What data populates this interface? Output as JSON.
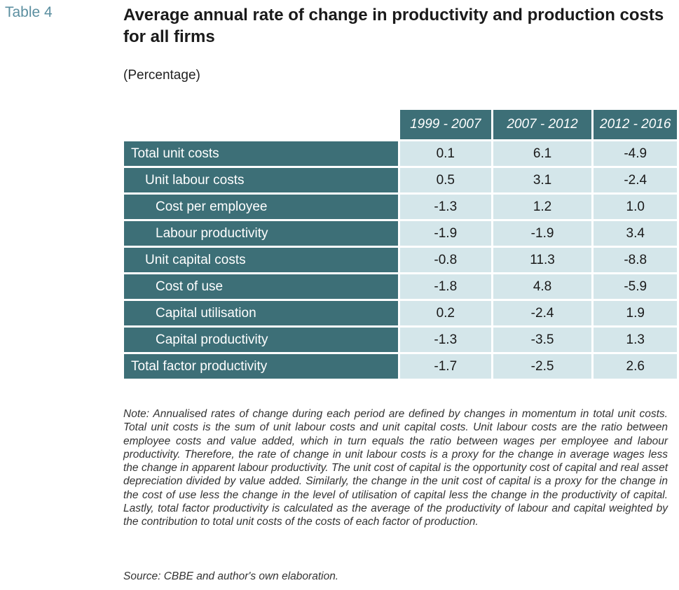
{
  "table_number": "Table 4",
  "title": "Average annual rate of change in productivity and production costs for all firms",
  "subtitle": "(Percentage)",
  "columns": [
    "1999 - 2007",
    "2007 - 2012",
    "2012 - 2016"
  ],
  "rows": [
    {
      "label": "Total unit costs",
      "indent": 0,
      "values": [
        "0.1",
        "6.1",
        "-4.9"
      ]
    },
    {
      "label": "Unit labour costs",
      "indent": 1,
      "values": [
        "0.5",
        "3.1",
        "-2.4"
      ]
    },
    {
      "label": "Cost per employee",
      "indent": 2,
      "values": [
        "-1.3",
        "1.2",
        "1.0"
      ]
    },
    {
      "label": "Labour productivity",
      "indent": 2,
      "values": [
        "-1.9",
        "-1.9",
        "3.4"
      ]
    },
    {
      "label": "Unit capital costs",
      "indent": 1,
      "values": [
        "-0.8",
        "11.3",
        "-8.8"
      ]
    },
    {
      "label": "Cost of use",
      "indent": 2,
      "values": [
        "-1.8",
        "4.8",
        "-5.9"
      ]
    },
    {
      "label": "Capital utilisation",
      "indent": 2,
      "values": [
        "0.2",
        "-2.4",
        "1.9"
      ]
    },
    {
      "label": "Capital productivity",
      "indent": 2,
      "values": [
        "-1.3",
        "-3.5",
        "1.3"
      ]
    },
    {
      "label": "Total factor productivity",
      "indent": 0,
      "values": [
        "-1.7",
        "-2.5",
        "2.6"
      ]
    }
  ],
  "note": "Note: Annualised rates of change during each period are defined by changes in momentum in total unit costs. Total unit costs is the sum of unit labour costs and unit capital costs. Unit labour costs are the ratio between employee costs and value added, which in turn equals the ratio between wages per employee and labour productivity. Therefore, the rate of change in unit labour costs is a proxy for the change in average wages less the change in apparent labour productivity. The unit cost of capital is the opportunity cost of capital and real asset depreciation divided by value added. Similarly, the change in the unit cost of capital is a proxy for the change in the cost of use less the change in the level of utilisation of capital less the change in the productivity of capital. Lastly, total factor productivity is calculated as the average of the productivity of labour and capital weighted by the contribution to total unit costs of the costs of each factor of production.",
  "source": "Source: CBBE and author's own elaboration.",
  "colors": {
    "header_bg": "#3d6f77",
    "cell_bg": "#d4e6ea",
    "table_number": "#5b8fa0"
  }
}
